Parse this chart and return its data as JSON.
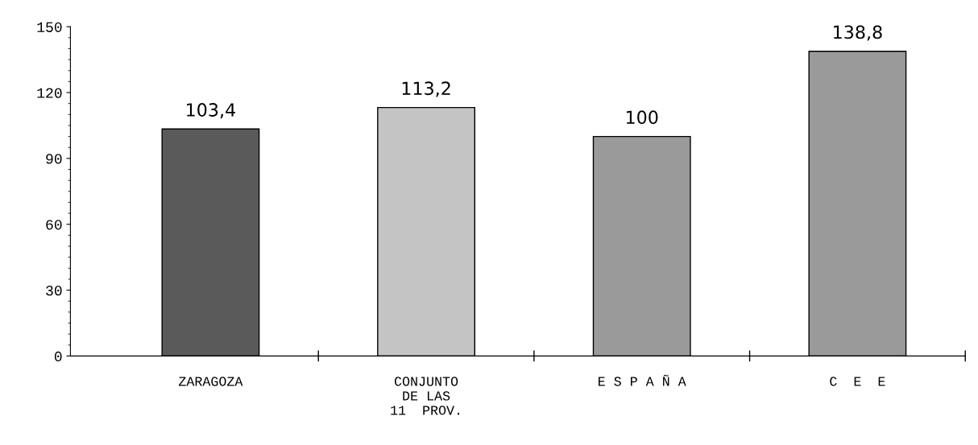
{
  "chart_data": {
    "type": "bar",
    "categories": [
      "ZARAGOZA",
      "CONJUNTO\nDE LAS\n11  PROV.",
      "E S P A Ñ A",
      "C  E  E"
    ],
    "values": [
      103.4,
      113.2,
      100,
      138.8
    ],
    "colors": [
      "#5a5a5a",
      "#c4c4c4",
      "#9a9a9a",
      "#9a9a9a"
    ],
    "value_labels": [
      "103,4",
      "113,2",
      "100",
      "138,8"
    ],
    "ylim": [
      0,
      150
    ],
    "yticks": [
      0,
      30,
      60,
      90,
      120,
      150
    ],
    "grid": false,
    "legend": false
  }
}
